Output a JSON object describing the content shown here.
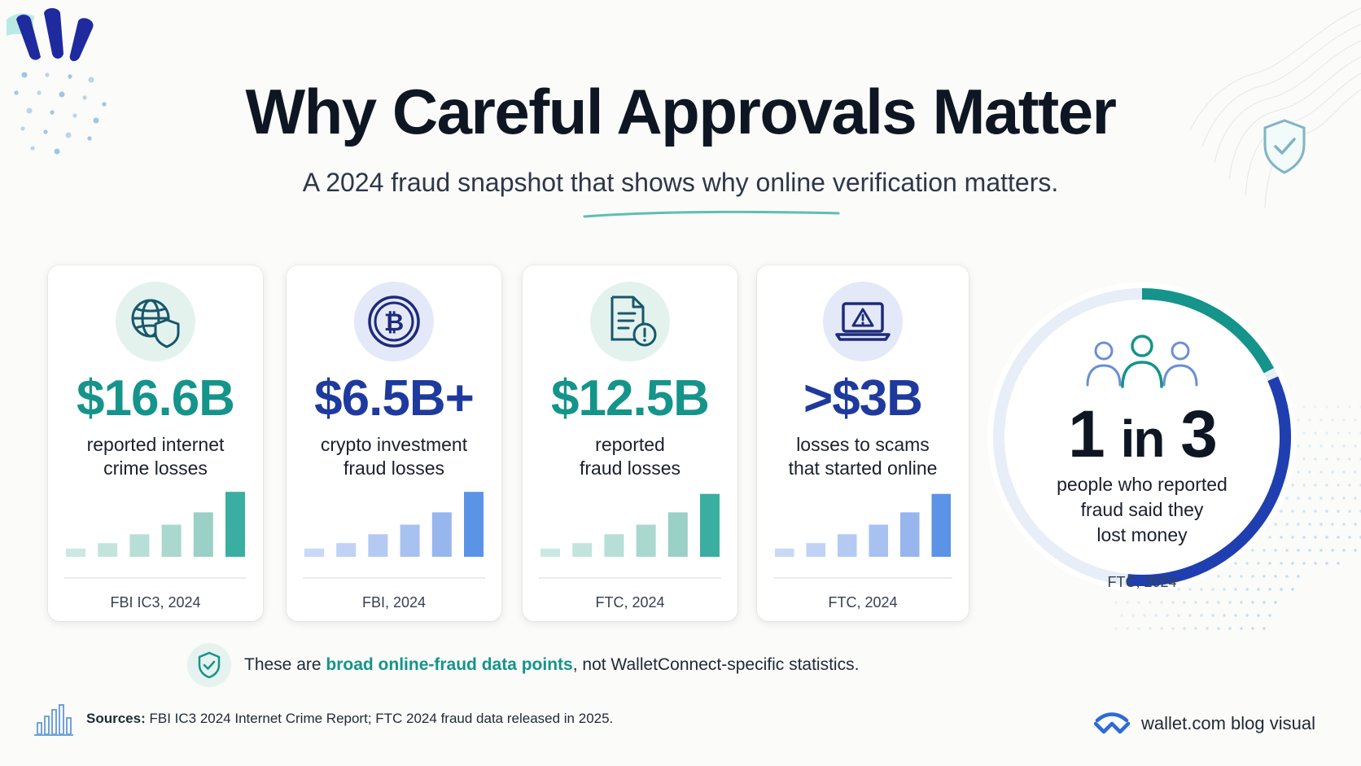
{
  "colors": {
    "teal": "#14948a",
    "navy": "#1e3a9e",
    "blue": "#1f45b8",
    "light_teal": "#bfe3dc",
    "light_blue": "#bcd0f5",
    "background": "#fbfbf9"
  },
  "header": {
    "title": "Why Careful Approvals Matter",
    "subtitle": "A 2024 fraud snapshot that shows why online verification matters."
  },
  "cards": [
    {
      "icon": "globe-shield-icon",
      "value": "$16.6B",
      "label_line1": "reported internet",
      "label_line2": "crime losses",
      "source": "FBI IC3, 2024",
      "accent": "teal",
      "bars": [
        0.12,
        0.2,
        0.33,
        0.47,
        0.65,
        0.95
      ]
    },
    {
      "icon": "bitcoin-icon",
      "value": "$6.5B+",
      "label_line1": "crypto investment",
      "label_line2": "fraud losses",
      "source": "FBI, 2024",
      "accent": "navy",
      "bars": [
        0.12,
        0.2,
        0.33,
        0.47,
        0.65,
        0.95
      ]
    },
    {
      "icon": "document-alert-icon",
      "value": "$12.5B",
      "label_line1": "reported",
      "label_line2": "fraud losses",
      "source": "FTC, 2024",
      "accent": "teal",
      "bars": [
        0.12,
        0.2,
        0.33,
        0.47,
        0.65,
        0.92
      ]
    },
    {
      "icon": "laptop-warning-icon",
      "value": ">$3B",
      "label_line1": "losses to scams",
      "label_line2": "that started online",
      "source": "FTC, 2024",
      "accent": "navy",
      "bars": [
        0.12,
        0.2,
        0.33,
        0.47,
        0.65,
        0.92
      ]
    }
  ],
  "ring_stat": {
    "value_a": "1",
    "value_mid": "in",
    "value_b": "3",
    "label_line1": "people who reported",
    "label_line2": "fraud said they",
    "label_line3": "lost money",
    "source": "FTC, 2024",
    "fraction": 0.333
  },
  "disclaimer": {
    "prefix": "These are ",
    "highlight": "broad online-fraud data points",
    "suffix": ", not WalletConnect-specific statistics."
  },
  "sources": {
    "label": "Sources:",
    "text": " FBI IC3 2024 Internet Crime Report; FTC 2024 fraud data released in 2025."
  },
  "footer": {
    "brand": "wallet.com blog visual"
  }
}
